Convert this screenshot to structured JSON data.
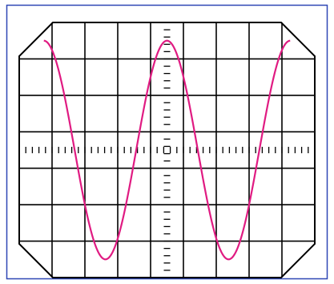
{
  "colors": {
    "frame_border": "#2f47b5",
    "background": "#ffffff",
    "screen_outline": "#000000",
    "grid_line": "#000000",
    "waveform": "#e01b82"
  },
  "screen": {
    "grid_columns": 9,
    "grid_rows": 7,
    "corners": "chamfered",
    "center_axes_with_ticks": true
  },
  "chart_data": {
    "type": "line",
    "waveform": "sine",
    "x_divisions": 9,
    "y_divisions": 7,
    "start_phase": "peak",
    "cycles": 2,
    "x_start_div": -3.75,
    "x_end_div": 3.75,
    "amplitude_div": 3,
    "samples": 240
  }
}
